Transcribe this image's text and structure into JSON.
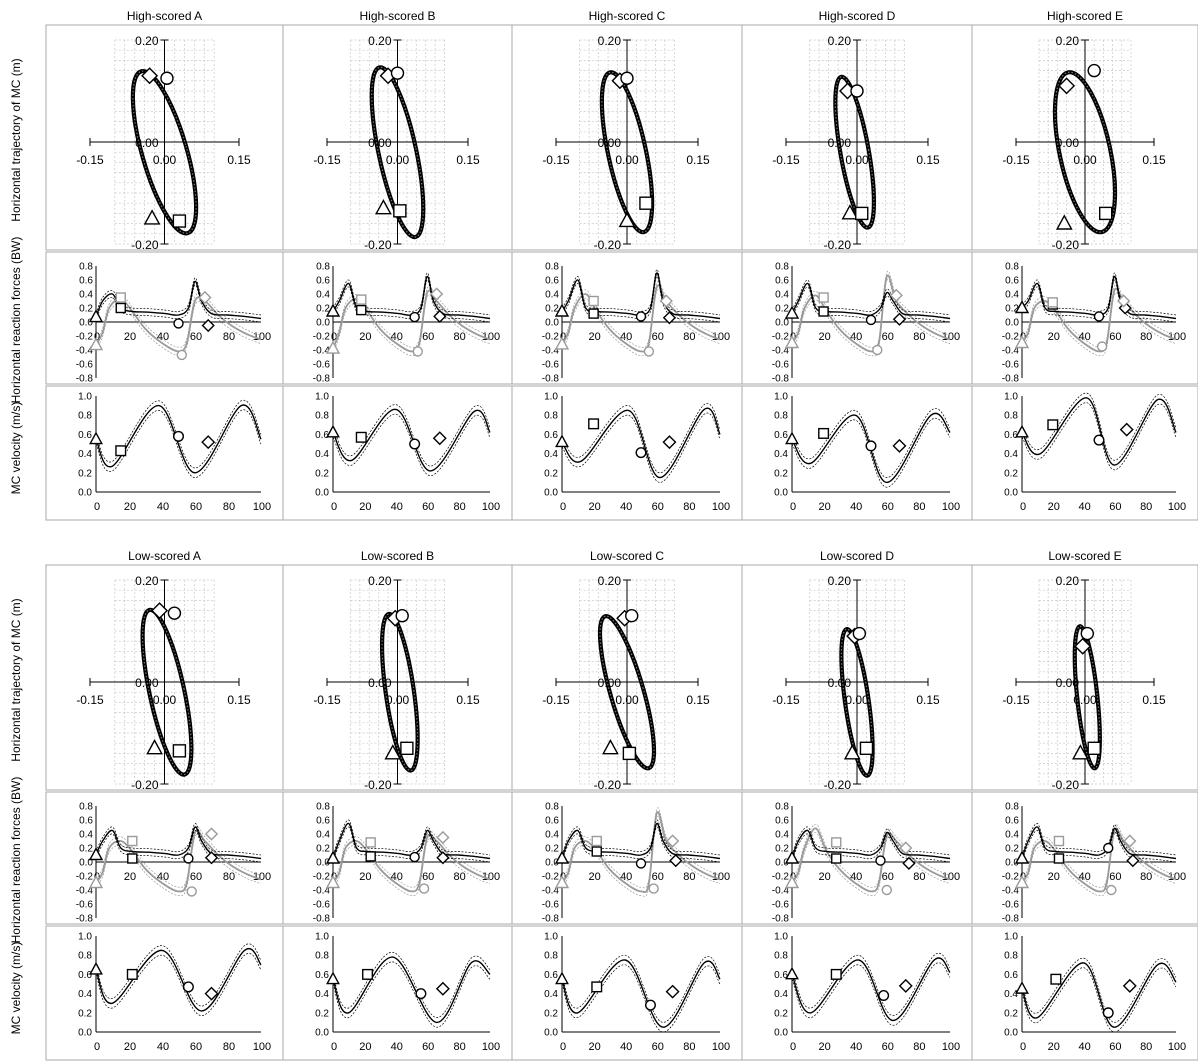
{
  "figure": {
    "row_labels": [
      "Horizontal trajectory of MC (m)",
      "Horizontal reaction forces (BW)",
      "MC velocity (m/s)"
    ],
    "panel_ticks": {
      "trajectory": {
        "x_ticks": [
          "-0.15",
          "0.00",
          "0.15"
        ],
        "y_ticks": [
          "0.20",
          "0.00",
          "-0.20"
        ],
        "xlim": [
          -0.15,
          0.15
        ],
        "ylim": [
          -0.2,
          0.2
        ]
      },
      "force": {
        "x_ticks": [
          "0",
          "20",
          "40",
          "60",
          "80",
          "100"
        ],
        "y_ticks": [
          "0.8",
          "0.6",
          "0.4",
          "0.2",
          "0.0",
          "-0.2",
          "-0.4",
          "-0.6",
          "-0.8"
        ],
        "xlim": [
          0,
          100
        ],
        "ylim": [
          -0.8,
          0.8
        ]
      },
      "velocity": {
        "x_ticks": [
          "0",
          "20",
          "40",
          "60",
          "80",
          "100"
        ],
        "y_ticks": [
          "1.0",
          "0.8",
          "0.6",
          "0.4",
          "0.2",
          "0.0"
        ],
        "xlim": [
          0,
          100
        ],
        "ylim": [
          0,
          1.0
        ]
      }
    },
    "colors": {
      "primary": "#000000",
      "secondary": "#9a9a9a",
      "grid": "#c8c8c8",
      "frame": "#a8a8a8"
    }
  },
  "chart_data": [
    {
      "type": "scatter",
      "title": "High-scored A",
      "trajectory": {
        "cx": 0.0,
        "cy": -0.02,
        "rx": 0.045,
        "ry": 0.165,
        "tilt": 16,
        "markers": {
          "diamond": [
            -0.03,
            0.13
          ],
          "circle": [
            0.005,
            0.125
          ],
          "triangle": [
            -0.025,
            -0.15
          ],
          "square": [
            0.03,
            -0.155
          ]
        }
      },
      "force": {
        "t_mark_black": 0.07,
        "t_mark_gray": -0.33,
        "black_peaks": [
          0.4,
          0.58
        ],
        "gray_peaks": [
          0.33,
          0.3
        ],
        "markers": {
          "square_black": [
            15,
            0.2
          ],
          "square_gray": [
            15,
            0.35
          ],
          "circle_black": [
            50,
            -0.02
          ],
          "circle_gray": [
            52,
            -0.47
          ],
          "diamond_black": [
            68,
            -0.05
          ],
          "diamond_gray": [
            66,
            0.35
          ]
        }
      },
      "velocity": {
        "y0": 0.55,
        "min1": [
          10,
          0.27
        ],
        "max1": [
          38,
          0.9
        ],
        "min2": [
          60,
          0.2
        ],
        "max2": [
          88,
          0.9
        ],
        "end": 0.55,
        "markers": {
          "triangle": [
            0,
            0.55
          ],
          "square": [
            15,
            0.43
          ],
          "circle": [
            50,
            0.58
          ],
          "diamond": [
            68,
            0.52
          ]
        }
      }
    },
    {
      "type": "scatter",
      "title": "High-scored B",
      "trajectory": {
        "cx": 0.0,
        "cy": -0.02,
        "rx": 0.04,
        "ry": 0.17,
        "tilt": 12,
        "markers": {
          "diamond": [
            -0.02,
            0.13
          ],
          "circle": [
            0.0,
            0.135
          ],
          "triangle": [
            -0.03,
            -0.13
          ],
          "square": [
            0.005,
            -0.135
          ]
        }
      },
      "force": {
        "t_mark_black": 0.15,
        "t_mark_gray": -0.38,
        "black_peaks": [
          0.55,
          0.65
        ],
        "gray_peaks": [
          0.33,
          0.42
        ],
        "markers": {
          "square_black": [
            18,
            0.17
          ],
          "square_gray": [
            18,
            0.32
          ],
          "circle_black": [
            52,
            0.07
          ],
          "circle_gray": [
            54,
            -0.42
          ],
          "diamond_black": [
            68,
            0.08
          ],
          "diamond_gray": [
            66,
            0.4
          ]
        }
      },
      "velocity": {
        "y0": 0.62,
        "min1": [
          12,
          0.33
        ],
        "max1": [
          40,
          0.86
        ],
        "min2": [
          62,
          0.22
        ],
        "max2": [
          90,
          0.84
        ],
        "end": 0.62,
        "markers": {
          "triangle": [
            0,
            0.62
          ],
          "square": [
            18,
            0.57
          ],
          "circle": [
            52,
            0.5
          ],
          "diamond": [
            68,
            0.56
          ]
        }
      }
    },
    {
      "type": "scatter",
      "title": "High-scored C",
      "trajectory": {
        "cx": 0.0,
        "cy": -0.02,
        "rx": 0.04,
        "ry": 0.16,
        "tilt": 12,
        "markers": {
          "diamond": [
            -0.015,
            0.12
          ],
          "circle": [
            0.0,
            0.125
          ],
          "triangle": [
            0.0,
            -0.155
          ],
          "square": [
            0.04,
            -0.12
          ]
        }
      },
      "force": {
        "t_mark_black": 0.15,
        "t_mark_gray": -0.32,
        "black_peaks": [
          0.6,
          0.7
        ],
        "gray_peaks": [
          0.4,
          0.5
        ],
        "markers": {
          "square_black": [
            20,
            0.12
          ],
          "square_gray": [
            20,
            0.3
          ],
          "circle_black": [
            50,
            0.08
          ],
          "circle_gray": [
            55,
            -0.42
          ],
          "diamond_black": [
            68,
            0.06
          ],
          "diamond_gray": [
            66,
            0.3
          ]
        }
      },
      "velocity": {
        "y0": 0.52,
        "min1": [
          12,
          0.32
        ],
        "max1": [
          42,
          0.85
        ],
        "min2": [
          62,
          0.15
        ],
        "max2": [
          90,
          0.86
        ],
        "end": 0.6,
        "markers": {
          "triangle": [
            0,
            0.52
          ],
          "square": [
            20,
            0.71
          ],
          "circle": [
            50,
            0.41
          ],
          "diamond": [
            68,
            0.52
          ]
        }
      }
    },
    {
      "type": "scatter",
      "title": "High-scored D",
      "trajectory": {
        "cx": -0.005,
        "cy": -0.02,
        "rx": 0.03,
        "ry": 0.15,
        "tilt": 10,
        "markers": {
          "diamond": [
            -0.02,
            0.1
          ],
          "circle": [
            0.0,
            0.1
          ],
          "triangle": [
            -0.015,
            -0.14
          ],
          "square": [
            0.01,
            -0.14
          ]
        }
      },
      "force": {
        "t_mark_black": 0.12,
        "t_mark_gray": -0.3,
        "black_peaks": [
          0.55,
          0.42
        ],
        "gray_peaks": [
          0.38,
          0.65
        ],
        "markers": {
          "square_black": [
            20,
            0.15
          ],
          "square_gray": [
            20,
            0.35
          ],
          "circle_black": [
            50,
            0.03
          ],
          "circle_gray": [
            54,
            -0.4
          ],
          "diamond_black": [
            68,
            0.04
          ],
          "diamond_gray": [
            66,
            0.38
          ]
        }
      },
      "velocity": {
        "y0": 0.55,
        "min1": [
          12,
          0.3
        ],
        "max1": [
          40,
          0.8
        ],
        "min2": [
          60,
          0.1
        ],
        "max2": [
          88,
          0.8
        ],
        "end": 0.62,
        "markers": {
          "triangle": [
            0,
            0.55
          ],
          "square": [
            20,
            0.61
          ],
          "circle": [
            50,
            0.48
          ],
          "diamond": [
            68,
            0.48
          ]
        }
      }
    },
    {
      "type": "scatter",
      "title": "High-scored E",
      "trajectory": {
        "cx": 0.0,
        "cy": -0.02,
        "rx": 0.055,
        "ry": 0.16,
        "tilt": 12,
        "markers": {
          "diamond": [
            -0.04,
            0.11
          ],
          "circle": [
            0.02,
            0.14
          ],
          "triangle": [
            -0.045,
            -0.16
          ],
          "square": [
            0.045,
            -0.14
          ]
        }
      },
      "force": {
        "t_mark_black": 0.2,
        "t_mark_gray": -0.3,
        "black_peaks": [
          0.55,
          0.65
        ],
        "gray_peaks": [
          0.3,
          0.45
        ],
        "markers": {
          "square_black": [
            20,
            0.25
          ],
          "square_gray": [
            20,
            0.28
          ],
          "circle_black": [
            50,
            0.08
          ],
          "circle_gray": [
            52,
            -0.35
          ],
          "diamond_black": [
            67,
            0.2
          ],
          "diamond_gray": [
            66,
            0.3
          ]
        }
      },
      "velocity": {
        "y0": 0.62,
        "min1": [
          12,
          0.4
        ],
        "max1": [
          42,
          0.98
        ],
        "min2": [
          60,
          0.28
        ],
        "max2": [
          88,
          0.96
        ],
        "end": 0.62,
        "markers": {
          "triangle": [
            0,
            0.62
          ],
          "square": [
            20,
            0.7
          ],
          "circle": [
            50,
            0.54
          ],
          "diamond": [
            68,
            0.65
          ]
        }
      }
    },
    {
      "type": "scatter",
      "title": "Low-scored A",
      "trajectory": {
        "cx": 0.005,
        "cy": -0.02,
        "rx": 0.035,
        "ry": 0.165,
        "tilt": 12,
        "markers": {
          "diamond": [
            -0.01,
            0.14
          ],
          "circle": [
            0.02,
            0.135
          ],
          "triangle": [
            -0.02,
            -0.13
          ],
          "square": [
            0.03,
            -0.135
          ]
        }
      },
      "force": {
        "t_mark_black": 0.1,
        "t_mark_gray": -0.3,
        "black_peaks": [
          0.45,
          0.5
        ],
        "gray_peaks": [
          0.3,
          0.42
        ],
        "markers": {
          "square_black": [
            22,
            0.05
          ],
          "square_gray": [
            22,
            0.3
          ],
          "circle_black": [
            56,
            0.05
          ],
          "circle_gray": [
            58,
            -0.42
          ],
          "diamond_black": [
            70,
            0.06
          ],
          "diamond_gray": [
            70,
            0.4
          ]
        }
      },
      "velocity": {
        "y0": 0.65,
        "min1": [
          10,
          0.3
        ],
        "max1": [
          40,
          0.85
        ],
        "min2": [
          64,
          0.22
        ],
        "max2": [
          90,
          0.85
        ],
        "end": 0.7,
        "markers": {
          "triangle": [
            0,
            0.65
          ],
          "square": [
            22,
            0.6
          ],
          "circle": [
            56,
            0.47
          ],
          "diamond": [
            70,
            0.4
          ]
        }
      }
    },
    {
      "type": "scatter",
      "title": "Low-scored B",
      "trajectory": {
        "cx": 0.005,
        "cy": -0.02,
        "rx": 0.03,
        "ry": 0.155,
        "tilt": 8,
        "markers": {
          "diamond": [
            -0.005,
            0.125
          ],
          "circle": [
            0.01,
            0.13
          ],
          "triangle": [
            -0.01,
            -0.14
          ],
          "square": [
            0.02,
            -0.13
          ]
        }
      },
      "force": {
        "t_mark_black": 0.05,
        "t_mark_gray": -0.3,
        "black_peaks": [
          0.55,
          0.45
        ],
        "gray_peaks": [
          0.3,
          0.35
        ],
        "markers": {
          "square_black": [
            24,
            0.08
          ],
          "square_gray": [
            24,
            0.28
          ],
          "circle_black": [
            52,
            0.07
          ],
          "circle_gray": [
            58,
            -0.38
          ],
          "diamond_black": [
            70,
            0.06
          ],
          "diamond_gray": [
            70,
            0.35
          ]
        }
      },
      "velocity": {
        "y0": 0.55,
        "min1": [
          10,
          0.2
        ],
        "max1": [
          38,
          0.78
        ],
        "min2": [
          66,
          0.1
        ],
        "max2": [
          88,
          0.72
        ],
        "end": 0.6,
        "markers": {
          "triangle": [
            0,
            0.55
          ],
          "square": [
            22,
            0.6
          ],
          "circle": [
            56,
            0.4
          ],
          "diamond": [
            70,
            0.45
          ]
        }
      }
    },
    {
      "type": "scatter",
      "title": "Low-scored C",
      "trajectory": {
        "cx": 0.0,
        "cy": -0.02,
        "rx": 0.035,
        "ry": 0.155,
        "tilt": 16,
        "markers": {
          "diamond": [
            -0.005,
            0.125
          ],
          "circle": [
            0.01,
            0.13
          ],
          "triangle": [
            -0.035,
            -0.13
          ],
          "square": [
            0.005,
            -0.14
          ]
        }
      },
      "force": {
        "t_mark_black": 0.05,
        "t_mark_gray": -0.3,
        "black_peaks": [
          0.45,
          0.55
        ],
        "gray_peaks": [
          0.3,
          0.7
        ],
        "markers": {
          "square_black": [
            22,
            0.15
          ],
          "square_gray": [
            22,
            0.3
          ],
          "circle_black": [
            50,
            -0.02
          ],
          "circle_gray": [
            58,
            -0.38
          ],
          "diamond_black": [
            72,
            0.02
          ],
          "diamond_gray": [
            70,
            0.3
          ]
        }
      },
      "velocity": {
        "y0": 0.55,
        "min1": [
          10,
          0.2
        ],
        "max1": [
          40,
          0.75
        ],
        "min2": [
          64,
          0.05
        ],
        "max2": [
          90,
          0.72
        ],
        "end": 0.55,
        "markers": {
          "triangle": [
            0,
            0.55
          ],
          "square": [
            22,
            0.47
          ],
          "circle": [
            56,
            0.28
          ],
          "diamond": [
            70,
            0.42
          ]
        }
      }
    },
    {
      "type": "scatter",
      "title": "Low-scored D",
      "trajectory": {
        "cx": 0.0,
        "cy": -0.04,
        "rx": 0.025,
        "ry": 0.145,
        "tilt": 8,
        "markers": {
          "diamond": [
            -0.005,
            0.09
          ],
          "circle": [
            0.005,
            0.095
          ],
          "triangle": [
            -0.01,
            -0.14
          ],
          "square": [
            0.02,
            -0.13
          ]
        }
      },
      "force": {
        "t_mark_black": 0.05,
        "t_mark_gray": -0.3,
        "black_peaks": [
          0.45,
          0.42
        ],
        "gray_peaks": [
          0.48,
          0.38
        ],
        "markers": {
          "square_black": [
            28,
            0.05
          ],
          "square_gray": [
            28,
            0.28
          ],
          "circle_black": [
            56,
            0.02
          ],
          "circle_gray": [
            60,
            -0.4
          ],
          "diamond_black": [
            74,
            -0.02
          ],
          "diamond_gray": [
            72,
            0.2
          ]
        }
      },
      "velocity": {
        "y0": 0.6,
        "min1": [
          12,
          0.2
        ],
        "max1": [
          42,
          0.75
        ],
        "min2": [
          64,
          0.12
        ],
        "max2": [
          90,
          0.75
        ],
        "end": 0.62,
        "markers": {
          "triangle": [
            0,
            0.6
          ],
          "square": [
            28,
            0.6
          ],
          "circle": [
            58,
            0.38
          ],
          "diamond": [
            72,
            0.48
          ]
        }
      }
    },
    {
      "type": "scatter",
      "title": "Low-scored E",
      "trajectory": {
        "cx": 0.005,
        "cy": -0.03,
        "rx": 0.022,
        "ry": 0.14,
        "tilt": 6,
        "markers": {
          "diamond": [
            -0.005,
            0.07
          ],
          "circle": [
            0.005,
            0.095
          ],
          "triangle": [
            -0.01,
            -0.14
          ],
          "square": [
            0.02,
            -0.13
          ]
        }
      },
      "force": {
        "t_mark_black": 0.05,
        "t_mark_gray": -0.3,
        "black_peaks": [
          0.5,
          0.48
        ],
        "gray_peaks": [
          0.3,
          0.45
        ],
        "markers": {
          "square_black": [
            24,
            0.05
          ],
          "square_gray": [
            24,
            0.3
          ],
          "circle_black": [
            56,
            0.2
          ],
          "circle_gray": [
            58,
            -0.4
          ],
          "diamond_black": [
            72,
            0.02
          ],
          "diamond_gray": [
            70,
            0.3
          ]
        }
      },
      "velocity": {
        "y0": 0.45,
        "min1": [
          10,
          0.15
        ],
        "max1": [
          40,
          0.72
        ],
        "min2": [
          60,
          0.05
        ],
        "max2": [
          88,
          0.7
        ],
        "end": 0.52,
        "markers": {
          "triangle": [
            0,
            0.45
          ],
          "square": [
            22,
            0.55
          ],
          "circle": [
            56,
            0.2
          ],
          "diamond": [
            70,
            0.48
          ]
        }
      }
    }
  ]
}
